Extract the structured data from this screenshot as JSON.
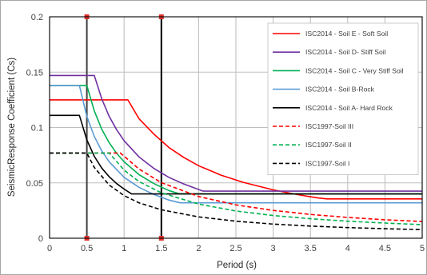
{
  "chart_data": {
    "type": "line",
    "xlabel": "Period (s)",
    "ylabel": "SeismicResponse Coefficient (Cs)",
    "xlim": [
      0,
      5
    ],
    "ylim": [
      0,
      0.2
    ],
    "x_ticks": [
      "0",
      "0.5",
      "1",
      "1.5",
      "2",
      "2.5",
      "3",
      "3.5",
      "4",
      "4.5",
      "5"
    ],
    "y_ticks": [
      "0",
      "0.05",
      "0.1",
      "0.15",
      "0.2"
    ],
    "grid": true,
    "legend_position": "top-right",
    "reference_lines": [
      {
        "x": 0.5,
        "color": "#404040",
        "marker_color": "#e0312a"
      },
      {
        "x": 1.5,
        "color": "#000000",
        "marker_color": "#e0312a"
      }
    ],
    "series": [
      {
        "name": "ISC2014 - Soil E - Soft Soil",
        "color": "#ff0000",
        "dash": "solid",
        "x": [
          0,
          1.05,
          1.2,
          1.4,
          1.6,
          1.8,
          2.0,
          2.3,
          2.6,
          3.0,
          3.3,
          3.6,
          3.72,
          5.0
        ],
        "y": [
          0.125,
          0.125,
          0.108,
          0.094,
          0.082,
          0.073,
          0.0655,
          0.057,
          0.0505,
          0.0437,
          0.0397,
          0.0364,
          0.0355,
          0.0355
        ]
      },
      {
        "name": "ISC2014 - Soil  D- Stiff Soil",
        "color": "#7030a0",
        "dash": "solid",
        "x": [
          0,
          0.6,
          0.7,
          0.8,
          0.9,
          1.0,
          1.2,
          1.4,
          1.6,
          1.8,
          2.06,
          5.0
        ],
        "y": [
          0.147,
          0.147,
          0.126,
          0.11,
          0.098,
          0.088,
          0.0735,
          0.063,
          0.055,
          0.049,
          0.0425,
          0.0425
        ]
      },
      {
        "name": "ISC2014 - Soil C - Very Stiff Soil",
        "color": "#00b050",
        "dash": "solid",
        "x": [
          0,
          0.5,
          0.6,
          0.7,
          0.8,
          0.9,
          1.0,
          1.2,
          1.4,
          1.6,
          1.75,
          5.0
        ],
        "y": [
          0.138,
          0.138,
          0.115,
          0.0985,
          0.0862,
          0.0766,
          0.069,
          0.0575,
          0.0493,
          0.0431,
          0.04,
          0.04
        ]
      },
      {
        "name": "ISC2014 - Soil B-Rock",
        "color": "#5b9bd5",
        "dash": "solid",
        "x": [
          0,
          0.4,
          0.5,
          0.6,
          0.7,
          0.8,
          1.0,
          1.2,
          1.4,
          1.6,
          1.75,
          5.0
        ],
        "y": [
          0.138,
          0.138,
          0.11,
          0.092,
          0.079,
          0.069,
          0.055,
          0.046,
          0.0395,
          0.0345,
          0.032,
          0.032
        ]
      },
      {
        "name": "ISC2014 - Soil A- Hard Rock",
        "color": "#000000",
        "dash": "solid",
        "x": [
          0,
          0.4,
          0.5,
          0.6,
          0.7,
          0.8,
          0.9,
          1.0,
          1.1,
          5.0
        ],
        "y": [
          0.111,
          0.111,
          0.0888,
          0.074,
          0.0634,
          0.0555,
          0.0493,
          0.0444,
          0.04,
          0.04
        ]
      },
      {
        "name": "ISC1997-Soil III",
        "color": "#ff0000",
        "dash": "dashed",
        "x": [
          0,
          0.95,
          1.2,
          1.5,
          2.0,
          2.5,
          3.0,
          3.5,
          4.0,
          4.5,
          5.0
        ],
        "y": [
          0.077,
          0.077,
          0.0625,
          0.0502,
          0.0377,
          0.0301,
          0.0251,
          0.0215,
          0.0188,
          0.0167,
          0.0151
        ]
      },
      {
        "name": "ISC1997-Soil II",
        "color": "#00b050",
        "dash": "dashed",
        "x": [
          0,
          0.8,
          1.0,
          1.2,
          1.5,
          2.0,
          2.5,
          3.0,
          3.5,
          4.0,
          4.5,
          5.0
        ],
        "y": [
          0.077,
          0.077,
          0.0615,
          0.0512,
          0.041,
          0.0308,
          0.0246,
          0.0205,
          0.0176,
          0.0154,
          0.0137,
          0.0123
        ]
      },
      {
        "name": "ISC1997-Soil I",
        "color": "#000000",
        "dash": "dashed",
        "x": [
          0,
          0.5,
          0.6,
          0.8,
          1.0,
          1.2,
          1.5,
          2.0,
          2.5,
          3.0,
          3.5,
          4.0,
          4.5,
          5.0
        ],
        "y": [
          0.077,
          0.077,
          0.064,
          0.048,
          0.0385,
          0.032,
          0.0257,
          0.0193,
          0.0154,
          0.0128,
          0.011,
          0.0096,
          0.0086,
          0.0077
        ]
      }
    ]
  }
}
